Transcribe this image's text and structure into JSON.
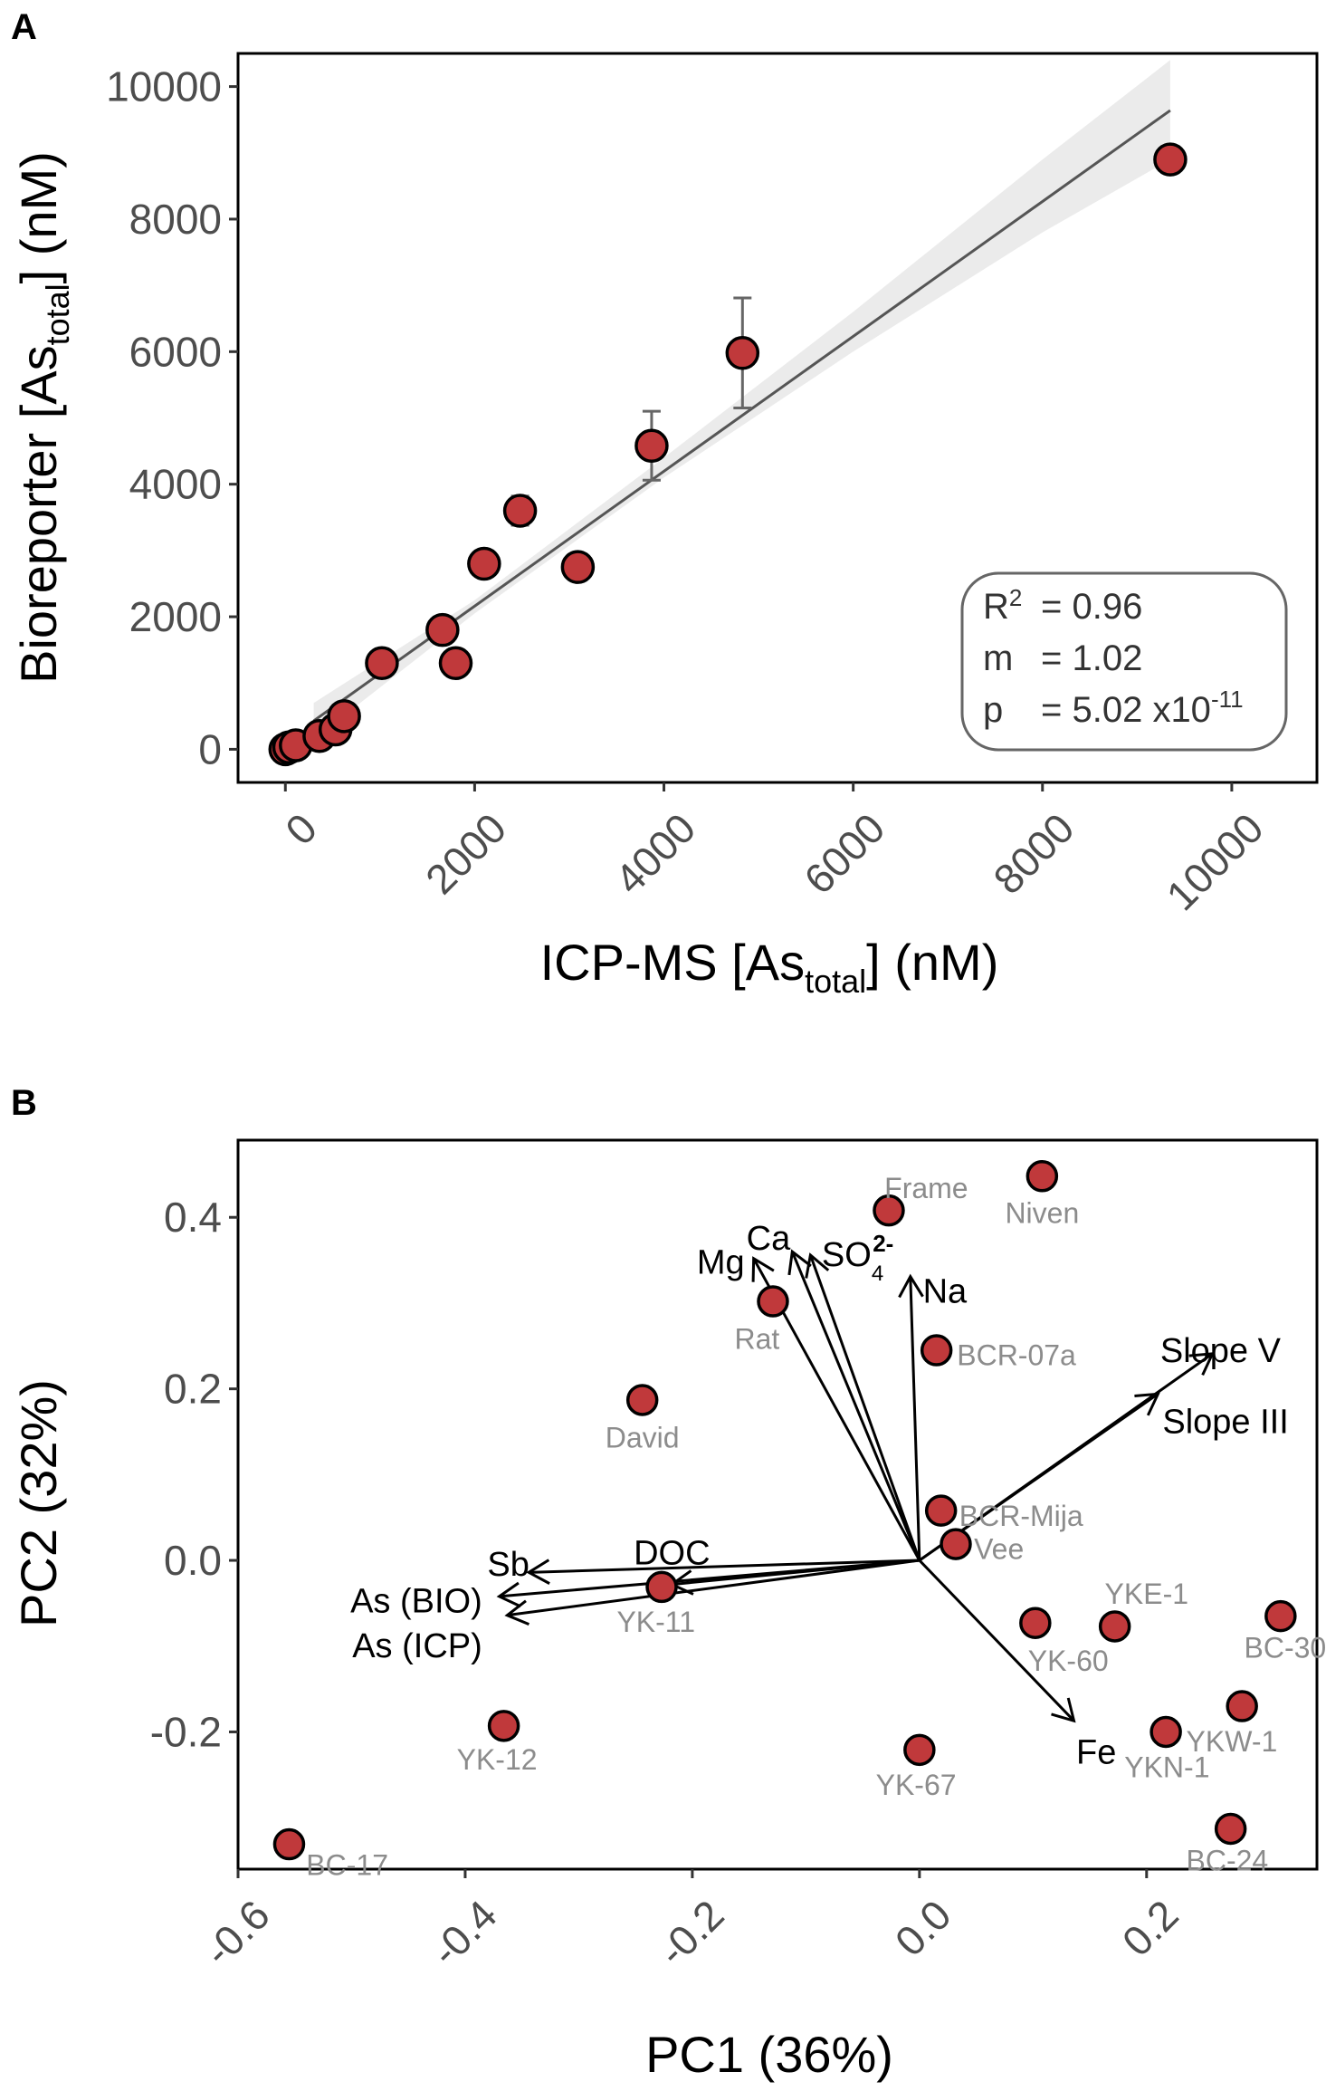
{
  "chart_data": [
    {
      "panel": "A",
      "type": "scatter",
      "xlabel": "ICP-MS [As",
      "xlabel_sub": "total",
      "xlabel_end": "] (nM)",
      "ylabel": "Bioreporter [As",
      "ylabel_sub": "total",
      "ylabel_end": "] (nM)",
      "xlim": [
        -500,
        10900
      ],
      "ylim": [
        -500,
        10500
      ],
      "xticks": [
        0,
        2000,
        4000,
        6000,
        8000,
        10000
      ],
      "yticks": [
        0,
        2000,
        4000,
        6000,
        8000,
        10000
      ],
      "point_color": "#c0393b",
      "points": [
        {
          "x": 0,
          "y": 0
        },
        {
          "x": 40,
          "y": 30
        },
        {
          "x": 110,
          "y": 60
        },
        {
          "x": 360,
          "y": 200
        },
        {
          "x": 530,
          "y": 300
        },
        {
          "x": 620,
          "y": 500
        },
        {
          "x": 1020,
          "y": 1300
        },
        {
          "x": 1660,
          "y": 1800
        },
        {
          "x": 1800,
          "y": 1300
        },
        {
          "x": 2100,
          "y": 2800
        },
        {
          "x": 2480,
          "y": 3600,
          "err": 220
        },
        {
          "x": 3090,
          "y": 2750
        },
        {
          "x": 3870,
          "y": 4580,
          "err": 520
        },
        {
          "x": 4830,
          "y": 5980,
          "err": 830
        },
        {
          "x": 9350,
          "y": 8900
        }
      ],
      "fit": {
        "x0": 300,
        "y0": 430,
        "x1": 9350,
        "y1": 9640
      },
      "ci": [
        {
          "x": 300,
          "lo": 150,
          "hi": 700
        },
        {
          "x": 2000,
          "lo": 2050,
          "hi": 2250
        },
        {
          "x": 4000,
          "lo": 4100,
          "hi": 4400
        },
        {
          "x": 6000,
          "lo": 6000,
          "hi": 6600
        },
        {
          "x": 8000,
          "lo": 7800,
          "hi": 8900
        },
        {
          "x": 9350,
          "lo": 8900,
          "hi": 10400
        }
      ],
      "stats": {
        "r2_label": "R",
        "r2_sup": "2",
        "r2_value": "= 0.96",
        "m_label": "m",
        "m_value": "= 1.02",
        "p_label": "p",
        "p_value": "= 5.02 x10",
        "p_exp": "-11"
      }
    },
    {
      "panel": "B",
      "type": "scatter",
      "xlabel": "PC1 (36%)",
      "ylabel": "PC2 (32%)",
      "xlim": [
        -0.6,
        0.35
      ],
      "ylim": [
        -0.36,
        0.49
      ],
      "xticks": [
        -0.6,
        -0.4,
        -0.2,
        0.0,
        0.2
      ],
      "xtick_labels": [
        "-0.6",
        "-0.4",
        "-0.2",
        "0.0",
        "0.2"
      ],
      "yticks": [
        -0.2,
        0.0,
        0.2,
        0.4
      ],
      "ytick_labels": [
        "-0.2",
        "0.0",
        "0.2",
        "0.4"
      ],
      "point_color": "#c0393b",
      "sites": [
        {
          "name": "Niven",
          "x": 0.108,
          "y": 0.448,
          "lx": 0.108,
          "ly": 0.405,
          "anchor": "middle"
        },
        {
          "name": "Frame",
          "x": -0.027,
          "y": 0.408,
          "lx": 0.006,
          "ly": 0.434,
          "anchor": "middle"
        },
        {
          "name": "Rat",
          "x": -0.129,
          "y": 0.302,
          "lx": -0.143,
          "ly": 0.258,
          "anchor": "middle"
        },
        {
          "name": "BCR-07a",
          "x": 0.015,
          "y": 0.245,
          "lx": 0.033,
          "ly": 0.239,
          "anchor": "start"
        },
        {
          "name": "David",
          "x": -0.244,
          "y": 0.187,
          "lx": -0.244,
          "ly": 0.143,
          "anchor": "middle"
        },
        {
          "name": "BCR-Mija",
          "x": 0.019,
          "y": 0.058,
          "lx": 0.035,
          "ly": 0.052,
          "anchor": "start"
        },
        {
          "name": "Vee",
          "x": 0.032,
          "y": 0.019,
          "lx": 0.048,
          "ly": 0.013,
          "anchor": "start"
        },
        {
          "name": "YK-11",
          "x": -0.227,
          "y": -0.031,
          "lx": -0.232,
          "ly": -0.072,
          "anchor": "middle"
        },
        {
          "name": "YK-60",
          "x": 0.102,
          "y": -0.073,
          "lx": 0.131,
          "ly": -0.117,
          "anchor": "middle"
        },
        {
          "name": "YKE-1",
          "x": 0.172,
          "y": -0.077,
          "lx": 0.2,
          "ly": -0.039,
          "anchor": "middle"
        },
        {
          "name": "BC-30",
          "x": 0.318,
          "y": -0.065,
          "lx": 0.322,
          "ly": -0.102,
          "anchor": "middle"
        },
        {
          "name": "YKW-1",
          "x": 0.284,
          "y": -0.17,
          "lx": 0.275,
          "ly": -0.211,
          "anchor": "middle"
        },
        {
          "name": "YKN-1",
          "x": 0.217,
          "y": -0.2,
          "lx": 0.218,
          "ly": -0.241,
          "anchor": "middle"
        },
        {
          "name": "YK-12",
          "x": -0.366,
          "y": -0.193,
          "lx": -0.372,
          "ly": -0.232,
          "anchor": "middle"
        },
        {
          "name": "YK-67",
          "x": 0.0,
          "y": -0.221,
          "lx": -0.003,
          "ly": -0.262,
          "anchor": "middle"
        },
        {
          "name": "BC-24",
          "x": 0.274,
          "y": -0.313,
          "lx": 0.271,
          "ly": -0.35,
          "anchor": "middle"
        },
        {
          "name": "BC-17",
          "x": -0.555,
          "y": -0.331,
          "lx": -0.54,
          "ly": -0.355,
          "anchor": "start"
        }
      ],
      "vectors": [
        {
          "name": "Mg",
          "x": -0.146,
          "y": 0.352,
          "lx": -0.175,
          "ly": 0.348,
          "anchor": "middle"
        },
        {
          "name": "Ca",
          "x": -0.112,
          "y": 0.36,
          "lx": -0.133,
          "ly": 0.376,
          "anchor": "middle"
        },
        {
          "name": "SO",
          "sub": "4",
          "sup": "2-",
          "x": -0.096,
          "y": 0.356,
          "lx": -0.086,
          "ly": 0.357,
          "anchor": "start"
        },
        {
          "name": "Na",
          "x": -0.008,
          "y": 0.331,
          "lx": 0.003,
          "ly": 0.314,
          "anchor": "start"
        },
        {
          "name": "Slope V",
          "x": 0.258,
          "y": 0.241,
          "lx": 0.212,
          "ly": 0.245,
          "anchor": "start"
        },
        {
          "name": "Slope III",
          "x": 0.21,
          "y": 0.194,
          "lx": 0.214,
          "ly": 0.162,
          "anchor": "start"
        },
        {
          "name": "DOC",
          "x": -0.218,
          "y": -0.028,
          "lx": -0.218,
          "ly": 0.009,
          "anchor": "middle"
        },
        {
          "name": "Sb",
          "x": -0.344,
          "y": -0.014,
          "lx": -0.362,
          "ly": -0.004,
          "anchor": "middle"
        },
        {
          "name": "As (BIO)",
          "x": -0.37,
          "y": -0.042,
          "lx": -0.385,
          "ly": -0.047,
          "anchor": "end"
        },
        {
          "name": "As (ICP)",
          "x": -0.363,
          "y": -0.064,
          "lx": -0.385,
          "ly": -0.099,
          "anchor": "end"
        },
        {
          "name": "Fe",
          "x": 0.136,
          "y": -0.187,
          "lx": 0.138,
          "ly": -0.223,
          "anchor": "start"
        }
      ]
    }
  ]
}
